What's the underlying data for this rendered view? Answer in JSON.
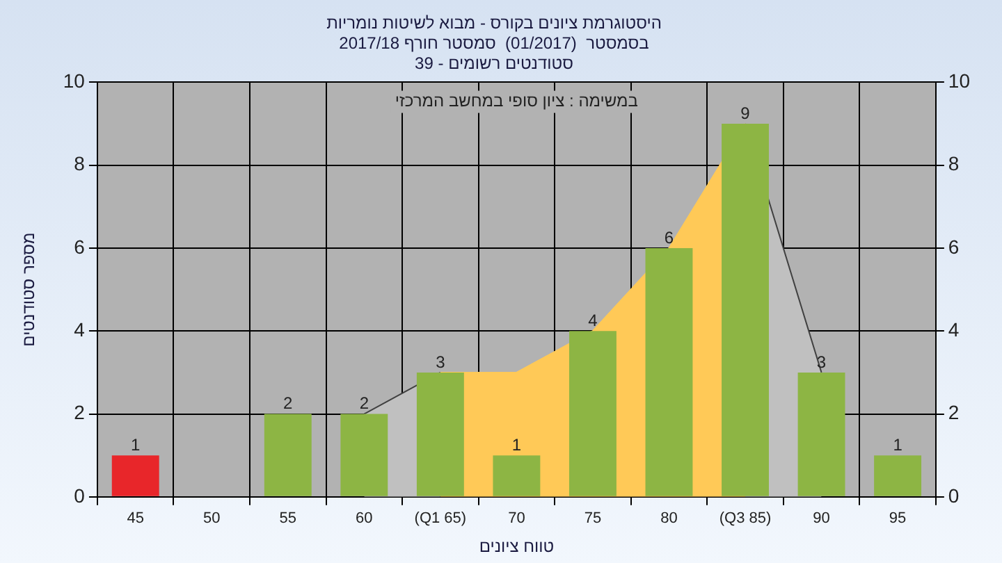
{
  "chart_data": {
    "type": "bar",
    "title": "היסטוגרמת ציונים בקורס - מבוא לשיטות נומריות\nבסמסטר  (01/2017)  סמסטר חורף 2017/18\nסטודנטים רשומים - 39",
    "xlabel": "טווח ציונים",
    "ylabel": "מספר סטודנטים",
    "annotations": [
      "במשימה : ציון סופי במחשב המרכזי"
    ],
    "categories": [
      "45",
      "50",
      "55",
      "60",
      "(Q1 65)",
      "70",
      "75",
      "80",
      "(Q3 85)",
      "90",
      "95"
    ],
    "series": [
      {
        "value_labels": [
          "1",
          null,
          "2",
          "2",
          "3",
          "1",
          "4",
          "6",
          "9",
          "3",
          "1"
        ],
        "colors": [
          "#e8262a",
          "#8db544",
          "#8db544",
          "#8db544",
          "#8db544",
          "#8db544",
          "#8db544",
          "#8db544",
          "#8db544",
          "#8db544",
          "#8db544"
        ],
        "values": [
          1,
          0,
          2,
          2,
          3,
          1,
          4,
          6,
          9,
          3,
          1
        ]
      },
      {
        "type": "area",
        "color": "#c0c0c0",
        "values": [
          null,
          null,
          null,
          2,
          3,
          null,
          null,
          null,
          9,
          3,
          null
        ]
      },
      {
        "type": "area",
        "color": "#ffc957",
        "values": [
          null,
          null,
          null,
          null,
          3,
          3,
          4,
          6,
          9,
          null,
          null
        ]
      }
    ],
    "ylim": [
      0,
      10
    ],
    "yticks": [
      0,
      2,
      4,
      6,
      8,
      10
    ],
    "y2lim": [
      0,
      10
    ],
    "y2ticks": [
      0,
      2,
      4,
      6,
      8,
      10
    ],
    "grid": true,
    "legend": false
  }
}
